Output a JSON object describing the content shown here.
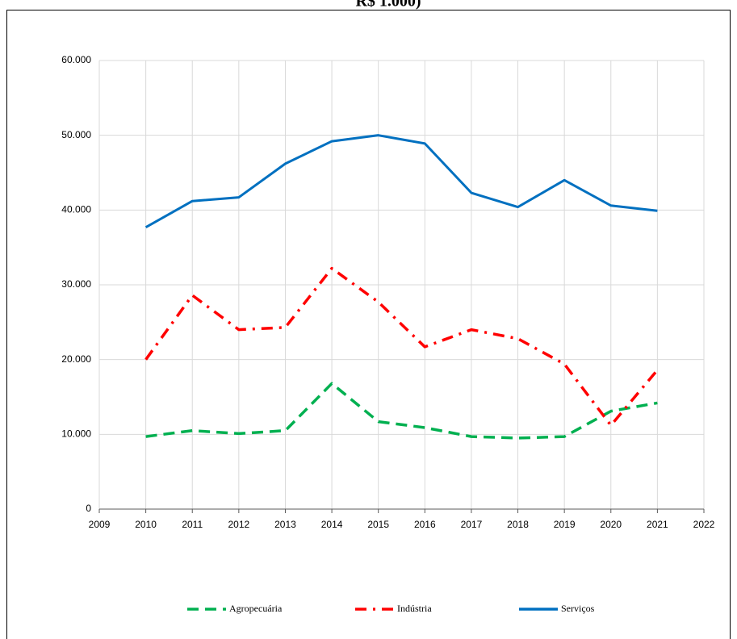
{
  "chart_data": {
    "type": "line",
    "title": "R$ 1.000)",
    "x": [
      2010,
      2011,
      2012,
      2013,
      2014,
      2015,
      2016,
      2017,
      2018,
      2019,
      2020,
      2021
    ],
    "series": [
      {
        "name": "Agropecuária",
        "color": "#00b050",
        "dash": "dashed",
        "values": [
          9700,
          10500,
          10100,
          10500,
          16800,
          11700,
          10900,
          9700,
          9500,
          9700,
          13100,
          14200
        ]
      },
      {
        "name": "Indústria",
        "color": "#ff0000",
        "dash": "dashdot",
        "values": [
          20000,
          28600,
          24000,
          24300,
          32200,
          27700,
          21700,
          24000,
          22800,
          19400,
          11200,
          18600
        ]
      },
      {
        "name": "Serviços",
        "color": "#0070c0",
        "dash": "solid",
        "values": [
          37700,
          41200,
          41700,
          46200,
          49200,
          50000,
          48900,
          42300,
          40400,
          44000,
          40600,
          39900
        ]
      }
    ],
    "xlim": [
      2009,
      2022
    ],
    "xticks": [
      2009,
      2010,
      2011,
      2012,
      2013,
      2014,
      2015,
      2016,
      2017,
      2018,
      2019,
      2020,
      2021,
      2022
    ],
    "ylim": [
      0,
      60000
    ],
    "yticks": [
      0,
      {
        "value": 10000,
        "label": "10.000"
      },
      {
        "value": 20000,
        "label": "20.000"
      },
      {
        "value": 30000,
        "label": "30.000"
      },
      {
        "value": 40000,
        "label": "40.000"
      },
      {
        "value": 50000,
        "label": "50.000"
      },
      {
        "value": 60000,
        "label": "60.000"
      }
    ],
    "grid": true,
    "legend": "bottom"
  }
}
